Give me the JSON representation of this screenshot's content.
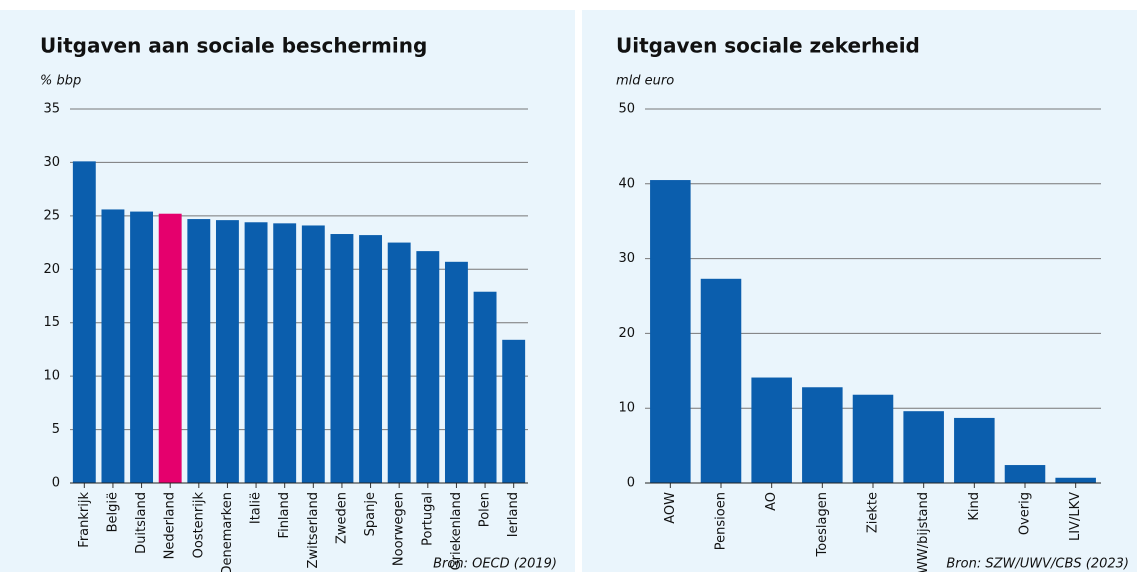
{
  "chart_data": [
    {
      "type": "bar",
      "title": "Uitgaven aan sociale bescherming",
      "y_label": "% bbp",
      "categories": [
        "Frankrijk",
        "België",
        "Duitsland",
        "Nederland",
        "Oostenrijk",
        "Denemarken",
        "Italië",
        "Finland",
        "Zwitserland",
        "Zweden",
        "Spanje",
        "Noorwegen",
        "Portugal",
        "Griekenland",
        "Polen",
        "Ierland"
      ],
      "values": [
        30.1,
        25.6,
        25.4,
        25.2,
        24.7,
        24.6,
        24.4,
        24.3,
        24.1,
        23.3,
        23.2,
        22.5,
        21.7,
        20.7,
        17.9,
        13.4
      ],
      "colors": [
        "#0b5ead",
        "#0b5ead",
        "#0b5ead",
        "#e5006d",
        "#0b5ead",
        "#0b5ead",
        "#0b5ead",
        "#0b5ead",
        "#0b5ead",
        "#0b5ead",
        "#0b5ead",
        "#0b5ead",
        "#0b5ead",
        "#0b5ead",
        "#0b5ead",
        "#0b5ead"
      ],
      "ylim": [
        0,
        35
      ],
      "yticks": [
        0,
        5,
        10,
        15,
        20,
        25,
        30,
        35
      ],
      "grid": true,
      "source": "Bron: OECD (2019)"
    },
    {
      "type": "bar",
      "title": "Uitgaven sociale zekerheid",
      "y_label": "mld euro",
      "categories": [
        "AOW",
        "Pensioen",
        "AO",
        "Toeslagen",
        "Ziekte",
        "WW/bijstand",
        "Kind",
        "Overig",
        "LIV/LKV"
      ],
      "values": [
        40.5,
        27.3,
        14.1,
        12.8,
        11.8,
        9.6,
        8.7,
        2.4,
        0.7
      ],
      "colors": [
        "#0b5ead",
        "#0b5ead",
        "#0b5ead",
        "#0b5ead",
        "#0b5ead",
        "#0b5ead",
        "#0b5ead",
        "#0b5ead",
        "#0b5ead"
      ],
      "ylim": [
        0,
        50
      ],
      "yticks": [
        0,
        10,
        20,
        30,
        40,
        50
      ],
      "grid": true,
      "source": "Bron: SZW/UWV/CBS (2023)"
    }
  ]
}
